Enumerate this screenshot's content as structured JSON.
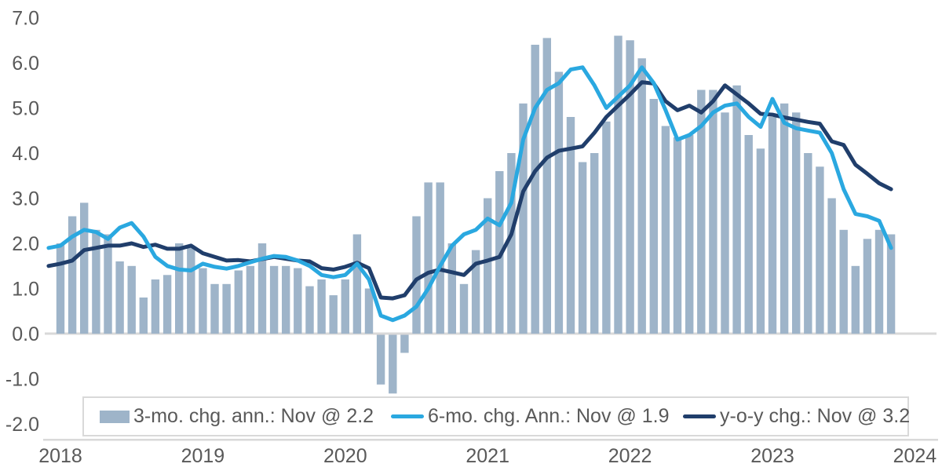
{
  "chart_data": {
    "type": "bar+line combo",
    "title": "",
    "categories": [
      "2017-12",
      "2018-01",
      "2018-02",
      "2018-03",
      "2018-04",
      "2018-05",
      "2018-06",
      "2018-07",
      "2018-08",
      "2018-09",
      "2018-10",
      "2018-11",
      "2018-12",
      "2019-01",
      "2019-02",
      "2019-03",
      "2019-04",
      "2019-05",
      "2019-06",
      "2019-07",
      "2019-08",
      "2019-09",
      "2019-10",
      "2019-11",
      "2019-12",
      "2020-01",
      "2020-02",
      "2020-03",
      "2020-04",
      "2020-05",
      "2020-06",
      "2020-07",
      "2020-08",
      "2020-09",
      "2020-10",
      "2020-11",
      "2020-12",
      "2021-01",
      "2021-02",
      "2021-03",
      "2021-04",
      "2021-05",
      "2021-06",
      "2021-07",
      "2021-08",
      "2021-09",
      "2021-10",
      "2021-11",
      "2021-12",
      "2022-01",
      "2022-02",
      "2022-03",
      "2022-04",
      "2022-05",
      "2022-06",
      "2022-07",
      "2022-08",
      "2022-09",
      "2022-10",
      "2022-11",
      "2022-12",
      "2023-01",
      "2023-02",
      "2023-03",
      "2023-04",
      "2023-05",
      "2023-06",
      "2023-07",
      "2023-08",
      "2023-09",
      "2023-10",
      "2023-11"
    ],
    "series": [
      {
        "name": "3-mo. chg. ann.",
        "kind": "bar",
        "color": "#9EB4C9",
        "values": [
          null,
          2.0,
          2.6,
          2.9,
          2.3,
          2.2,
          1.6,
          1.5,
          0.8,
          1.2,
          1.3,
          2.0,
          1.9,
          1.45,
          1.1,
          1.1,
          1.4,
          1.5,
          2.0,
          1.5,
          1.5,
          1.45,
          1.05,
          1.2,
          0.85,
          1.2,
          2.2,
          1.0,
          -1.1,
          -1.3,
          -0.4,
          2.6,
          3.35,
          3.35,
          2.0,
          1.1,
          1.85,
          3.0,
          3.6,
          4.0,
          5.1,
          6.4,
          6.55,
          5.8,
          4.8,
          3.8,
          4.0,
          4.7,
          6.6,
          6.5,
          6.1,
          5.2,
          4.6,
          4.35,
          4.4,
          5.4,
          5.4,
          4.9,
          5.5,
          4.4,
          4.1,
          4.8,
          5.1,
          4.9,
          4.0,
          3.7,
          3.0,
          2.3,
          1.5,
          2.1,
          2.3,
          2.2
        ]
      },
      {
        "name": "6-mo. chg. Ann.",
        "kind": "line",
        "color": "#2AA8E0",
        "values": [
          1.9,
          1.95,
          2.15,
          2.3,
          2.25,
          2.1,
          2.35,
          2.45,
          2.15,
          1.7,
          1.5,
          1.42,
          1.4,
          1.55,
          1.48,
          1.44,
          1.5,
          1.58,
          1.66,
          1.72,
          1.7,
          1.62,
          1.5,
          1.3,
          1.25,
          1.3,
          1.55,
          1.2,
          0.4,
          0.3,
          0.4,
          0.6,
          1.0,
          1.5,
          1.95,
          2.2,
          2.3,
          2.55,
          2.4,
          2.9,
          4.3,
          5.0,
          5.4,
          5.55,
          5.85,
          5.9,
          5.5,
          5.0,
          5.25,
          5.5,
          5.9,
          5.55,
          4.95,
          4.3,
          4.4,
          4.6,
          4.9,
          5.05,
          5.1,
          4.8,
          4.58,
          5.2,
          4.67,
          4.55,
          4.5,
          4.45,
          4.0,
          3.2,
          2.65,
          2.6,
          2.5,
          1.9
        ]
      },
      {
        "name": "y-o-y chg.",
        "kind": "line",
        "color": "#203E6B",
        "values": [
          1.5,
          1.55,
          1.62,
          1.85,
          1.9,
          1.95,
          1.95,
          2.0,
          1.92,
          1.97,
          1.88,
          1.88,
          1.95,
          1.78,
          1.7,
          1.62,
          1.63,
          1.6,
          1.65,
          1.7,
          1.66,
          1.62,
          1.6,
          1.45,
          1.42,
          1.48,
          1.57,
          1.45,
          0.8,
          0.78,
          0.85,
          1.2,
          1.35,
          1.42,
          1.36,
          1.3,
          1.55,
          1.62,
          1.7,
          2.2,
          3.15,
          3.6,
          3.9,
          4.05,
          4.1,
          4.15,
          4.45,
          4.8,
          5.05,
          5.3,
          5.57,
          5.54,
          5.15,
          4.95,
          5.05,
          4.9,
          5.15,
          5.5,
          5.3,
          5.1,
          4.87,
          4.85,
          4.79,
          4.74,
          4.69,
          4.65,
          4.26,
          4.18,
          3.74,
          3.54,
          3.33,
          3.2
        ]
      }
    ],
    "y_axis": {
      "min": -2.0,
      "max": 7.0,
      "step": 1.0,
      "gridlines": false,
      "tick_labels": [
        "7.0",
        "6.0",
        "5.0",
        "4.0",
        "3.0",
        "2.0",
        "1.0",
        "0.0",
        "-1.0",
        "-2.0"
      ]
    },
    "x_axis": {
      "tick_labels": [
        "2018",
        "2019",
        "2020",
        "2021",
        "2022",
        "2023",
        "2024"
      ]
    },
    "legend": {
      "position": "bottom",
      "items": [
        {
          "label": "3-mo. chg. ann.: Nov @ 2.2",
          "marker": "bar-swatch",
          "color": "#9EB4C9"
        },
        {
          "label": "6-mo. chg. Ann.: Nov @ 1.9",
          "marker": "line-swatch",
          "color": "#2AA8E0"
        },
        {
          "label": "y-o-y chg.: Nov @ 3.2",
          "marker": "line-swatch",
          "color": "#203E6B"
        }
      ]
    },
    "colors": {
      "axis_text": "#595959",
      "axis_line": "#D9D9D9",
      "zero_line": "#D9D9D9"
    }
  }
}
